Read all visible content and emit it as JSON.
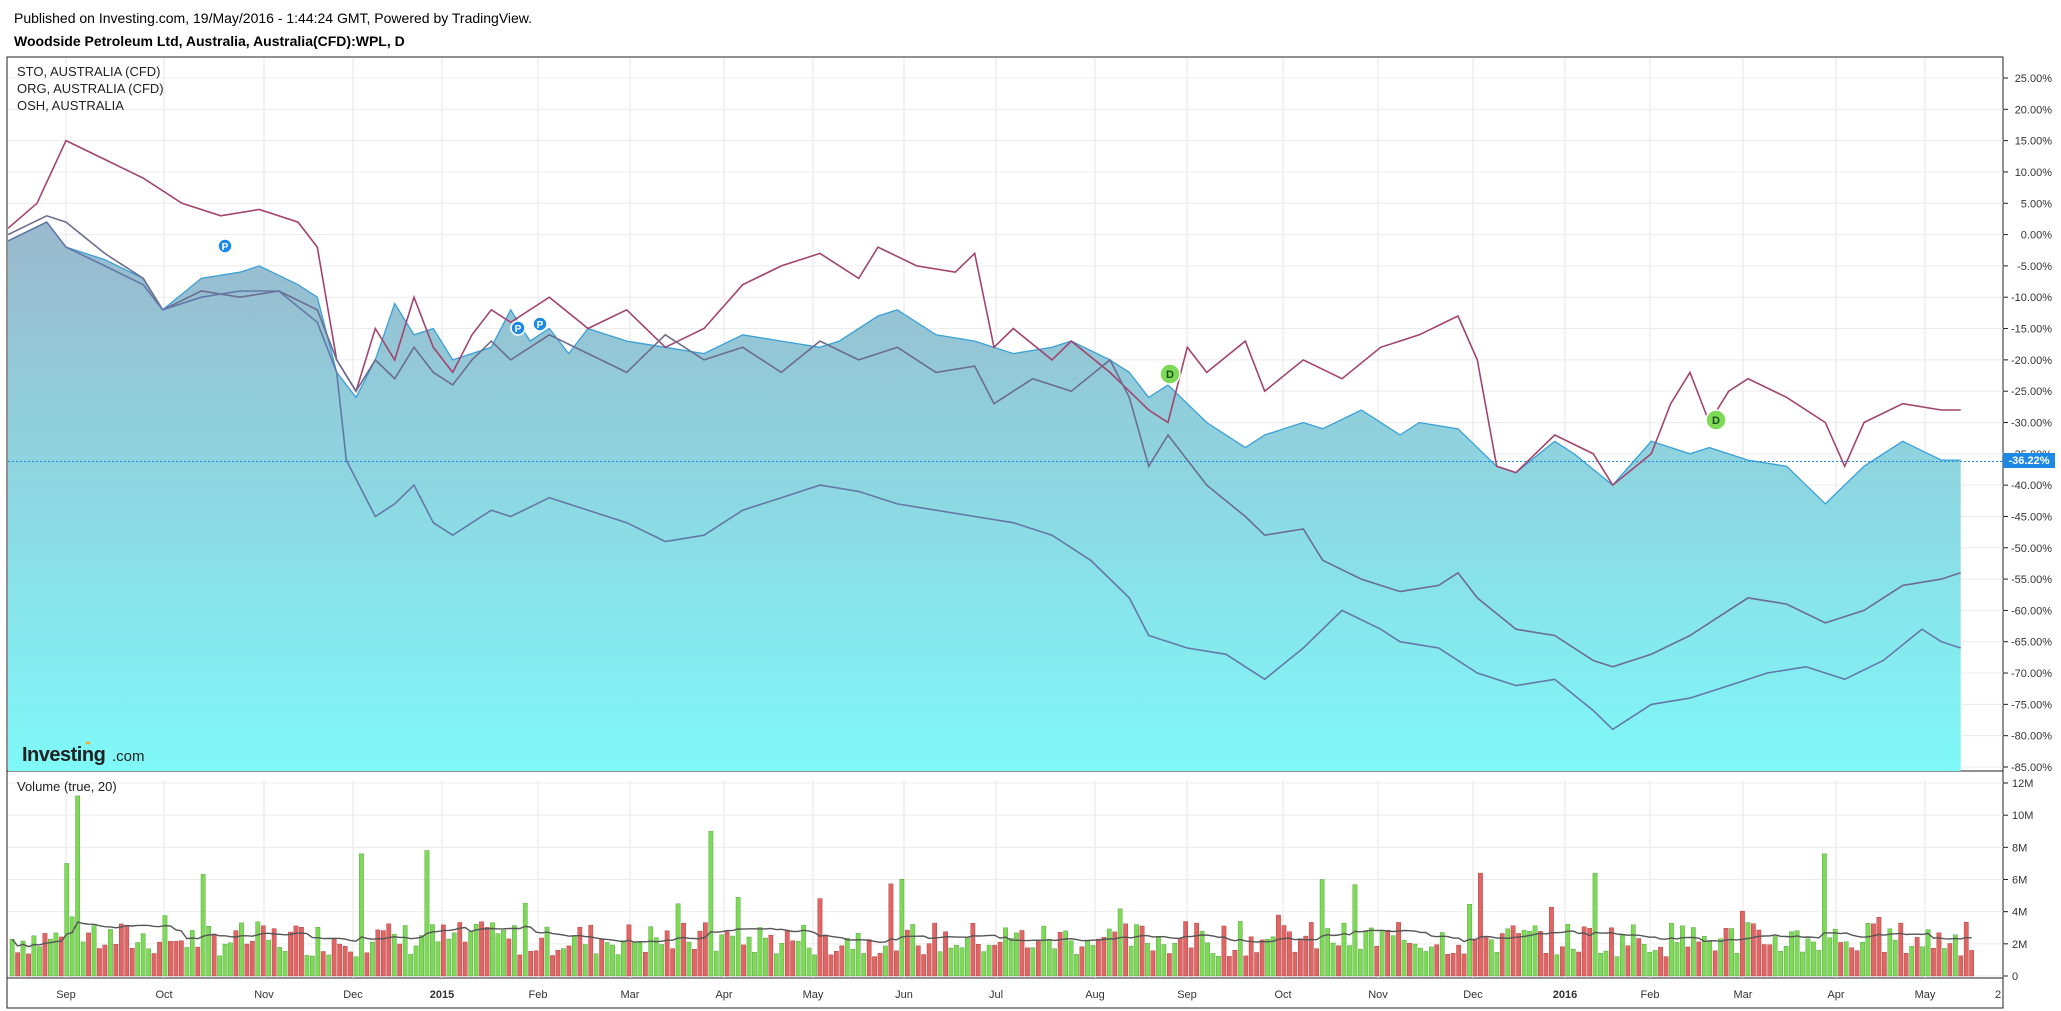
{
  "header": {
    "published": "Published on Investing.com, 19/May/2016 - 1:44:24 GMT, Powered by TradingView.",
    "symbol": "Woodside Petroleum Ltd, Australia, Australia(CFD):WPL, D"
  },
  "legend": {
    "items": [
      "STO, AUSTRALIA (CFD)",
      "ORG, AUSTRALIA (CFD)",
      "OSH, AUSTRALIA"
    ]
  },
  "volume_label": "Volume (true, 20)",
  "logo": {
    "brand": "Investing",
    "suffix": ".com"
  },
  "price_badge": "-36.22%",
  "markers": [
    {
      "label": "P",
      "x": "Oct",
      "color": "#1e88e5"
    },
    {
      "label": "P",
      "x": "Feb",
      "color": "#1e88e5"
    },
    {
      "label": "P",
      "x": "Feb",
      "color": "#1e88e5"
    },
    {
      "label": "D",
      "x": "Aug",
      "color": "#7ed957"
    },
    {
      "label": "D",
      "x": "Feb",
      "color": "#7ed957"
    }
  ],
  "colors": {
    "area_top": "#3aa0d8",
    "area_fill_top": "#9ab8cc",
    "area_fill_bottom": "#7ff8f8",
    "sto": "#a2446e",
    "org": "#6c6d8e",
    "osh": "#6478a8",
    "vol_up": "#7ed957",
    "vol_down": "#e06666",
    "vol_ma": "#555555",
    "badge": "#1e88e5"
  },
  "chart_data": [
    {
      "type": "area",
      "title": "Woodside Petroleum Ltd, Australia, Australia(CFD):WPL, D",
      "x_tick_labels": [
        "Sep",
        "Oct",
        "Nov",
        "Dec",
        "2015",
        "Feb",
        "Mar",
        "Apr",
        "May",
        "Jun",
        "Jul",
        "Aug",
        "Sep",
        "Oct",
        "Nov",
        "Dec",
        "2016",
        "Feb",
        "Mar",
        "Apr",
        "May"
      ],
      "y_tick_labels": [
        "25.00%",
        "20.00%",
        "15.00%",
        "10.00%",
        "5.00%",
        "0.00%",
        "-5.00%",
        "-10.00%",
        "-15.00%",
        "-20.00%",
        "-25.00%",
        "-30.00%",
        "-35.00%",
        "-40.00%",
        "-45.00%",
        "-50.00%",
        "-55.00%",
        "-60.00%",
        "-65.00%",
        "-70.00%",
        "-75.00%",
        "-80.00%",
        "-85.00%"
      ],
      "ylim": [
        -86,
        27
      ],
      "x_domain": [
        0,
        20.4
      ],
      "series": [
        {
          "name": "WPL",
          "values": [
            [
              0,
              -1
            ],
            [
              0.4,
              2
            ],
            [
              0.6,
              -2
            ],
            [
              1.0,
              -4
            ],
            [
              1.4,
              -7
            ],
            [
              1.6,
              -12
            ],
            [
              2.0,
              -7
            ],
            [
              2.4,
              -6
            ],
            [
              2.6,
              -5
            ],
            [
              3.0,
              -8
            ],
            [
              3.2,
              -10
            ],
            [
              3.4,
              -22
            ],
            [
              3.6,
              -26
            ],
            [
              3.8,
              -20
            ],
            [
              4.0,
              -11
            ],
            [
              4.2,
              -16
            ],
            [
              4.4,
              -15
            ],
            [
              4.6,
              -20
            ],
            [
              5.0,
              -18
            ],
            [
              5.2,
              -12
            ],
            [
              5.4,
              -17
            ],
            [
              5.6,
              -15
            ],
            [
              5.8,
              -19
            ],
            [
              6.0,
              -15
            ],
            [
              6.4,
              -17
            ],
            [
              6.8,
              -18
            ],
            [
              7.2,
              -19
            ],
            [
              7.6,
              -16
            ],
            [
              8.0,
              -17
            ],
            [
              8.4,
              -18
            ],
            [
              8.6,
              -17
            ],
            [
              9.0,
              -13
            ],
            [
              9.2,
              -12
            ],
            [
              9.6,
              -16
            ],
            [
              10.0,
              -17
            ],
            [
              10.4,
              -19
            ],
            [
              10.8,
              -18
            ],
            [
              11.0,
              -17
            ],
            [
              11.4,
              -20
            ],
            [
              11.6,
              -22
            ],
            [
              11.8,
              -26
            ],
            [
              12.0,
              -24
            ],
            [
              12.4,
              -30
            ],
            [
              12.8,
              -34
            ],
            [
              13.0,
              -32
            ],
            [
              13.4,
              -30
            ],
            [
              13.6,
              -31
            ],
            [
              14.0,
              -28
            ],
            [
              14.4,
              -32
            ],
            [
              14.6,
              -30
            ],
            [
              15.0,
              -31
            ],
            [
              15.4,
              -37
            ],
            [
              15.6,
              -38
            ],
            [
              16.0,
              -33
            ],
            [
              16.2,
              -35
            ],
            [
              16.6,
              -40
            ],
            [
              17.0,
              -33
            ],
            [
              17.4,
              -35
            ],
            [
              17.6,
              -34
            ],
            [
              18.0,
              -36
            ],
            [
              18.4,
              -37
            ],
            [
              18.8,
              -43
            ],
            [
              19.2,
              -37
            ],
            [
              19.6,
              -33
            ],
            [
              20.0,
              -36
            ],
            [
              20.2,
              -36
            ]
          ]
        },
        {
          "name": "STO",
          "values": [
            [
              0,
              1
            ],
            [
              0.3,
              5
            ],
            [
              0.6,
              15
            ],
            [
              1.0,
              12
            ],
            [
              1.4,
              9
            ],
            [
              1.8,
              5
            ],
            [
              2.2,
              3
            ],
            [
              2.6,
              4
            ],
            [
              3.0,
              2
            ],
            [
              3.2,
              -2
            ],
            [
              3.4,
              -20
            ],
            [
              3.6,
              -25
            ],
            [
              3.8,
              -15
            ],
            [
              4.0,
              -20
            ],
            [
              4.2,
              -10
            ],
            [
              4.4,
              -18
            ],
            [
              4.6,
              -22
            ],
            [
              4.8,
              -16
            ],
            [
              5.0,
              -12
            ],
            [
              5.2,
              -14
            ],
            [
              5.6,
              -10
            ],
            [
              6.0,
              -15
            ],
            [
              6.4,
              -12
            ],
            [
              6.8,
              -18
            ],
            [
              7.2,
              -15
            ],
            [
              7.6,
              -8
            ],
            [
              8.0,
              -5
            ],
            [
              8.4,
              -3
            ],
            [
              8.8,
              -7
            ],
            [
              9.0,
              -2
            ],
            [
              9.4,
              -5
            ],
            [
              9.8,
              -6
            ],
            [
              10.0,
              -3
            ],
            [
              10.2,
              -18
            ],
            [
              10.4,
              -15
            ],
            [
              10.8,
              -20
            ],
            [
              11.0,
              -17
            ],
            [
              11.4,
              -22
            ],
            [
              11.6,
              -25
            ],
            [
              11.8,
              -28
            ],
            [
              12.0,
              -30
            ],
            [
              12.2,
              -18
            ],
            [
              12.4,
              -22
            ],
            [
              12.8,
              -17
            ],
            [
              13.0,
              -25
            ],
            [
              13.4,
              -20
            ],
            [
              13.8,
              -23
            ],
            [
              14.2,
              -18
            ],
            [
              14.6,
              -16
            ],
            [
              15.0,
              -13
            ],
            [
              15.2,
              -20
            ],
            [
              15.4,
              -37
            ],
            [
              15.6,
              -38
            ],
            [
              16.0,
              -32
            ],
            [
              16.4,
              -35
            ],
            [
              16.6,
              -40
            ],
            [
              17.0,
              -35
            ],
            [
              17.2,
              -27
            ],
            [
              17.4,
              -22
            ],
            [
              17.6,
              -30
            ],
            [
              17.8,
              -25
            ],
            [
              18.0,
              -23
            ],
            [
              18.4,
              -26
            ],
            [
              18.8,
              -30
            ],
            [
              19.0,
              -37
            ],
            [
              19.2,
              -30
            ],
            [
              19.6,
              -27
            ],
            [
              20.0,
              -28
            ],
            [
              20.2,
              -28
            ]
          ]
        },
        {
          "name": "ORG",
          "values": [
            [
              0,
              0
            ],
            [
              0.4,
              3
            ],
            [
              0.6,
              2
            ],
            [
              1.0,
              -3
            ],
            [
              1.4,
              -7
            ],
            [
              1.6,
              -12
            ],
            [
              2.0,
              -9
            ],
            [
              2.4,
              -10
            ],
            [
              2.8,
              -9
            ],
            [
              3.2,
              -12
            ],
            [
              3.4,
              -20
            ],
            [
              3.6,
              -25
            ],
            [
              3.8,
              -20
            ],
            [
              4.0,
              -23
            ],
            [
              4.2,
              -18
            ],
            [
              4.4,
              -22
            ],
            [
              4.6,
              -24
            ],
            [
              4.8,
              -20
            ],
            [
              5.0,
              -17
            ],
            [
              5.2,
              -20
            ],
            [
              5.6,
              -16
            ],
            [
              6.0,
              -19
            ],
            [
              6.4,
              -22
            ],
            [
              6.8,
              -16
            ],
            [
              7.2,
              -20
            ],
            [
              7.6,
              -18
            ],
            [
              8.0,
              -22
            ],
            [
              8.4,
              -17
            ],
            [
              8.8,
              -20
            ],
            [
              9.2,
              -18
            ],
            [
              9.6,
              -22
            ],
            [
              10.0,
              -21
            ],
            [
              10.2,
              -27
            ],
            [
              10.6,
              -23
            ],
            [
              11.0,
              -25
            ],
            [
              11.4,
              -20
            ],
            [
              11.6,
              -26
            ],
            [
              11.8,
              -37
            ],
            [
              12.0,
              -32
            ],
            [
              12.4,
              -40
            ],
            [
              12.8,
              -45
            ],
            [
              13.0,
              -48
            ],
            [
              13.4,
              -47
            ],
            [
              13.6,
              -52
            ],
            [
              14.0,
              -55
            ],
            [
              14.4,
              -57
            ],
            [
              14.8,
              -56
            ],
            [
              15.0,
              -54
            ],
            [
              15.2,
              -58
            ],
            [
              15.6,
              -63
            ],
            [
              16.0,
              -64
            ],
            [
              16.4,
              -68
            ],
            [
              16.6,
              -69
            ],
            [
              17.0,
              -67
            ],
            [
              17.4,
              -64
            ],
            [
              17.6,
              -62
            ],
            [
              18.0,
              -58
            ],
            [
              18.4,
              -59
            ],
            [
              18.8,
              -62
            ],
            [
              19.2,
              -60
            ],
            [
              19.6,
              -56
            ],
            [
              20.0,
              -55
            ],
            [
              20.2,
              -54
            ]
          ]
        },
        {
          "name": "OSH",
          "values": [
            [
              0,
              -1
            ],
            [
              0.4,
              2
            ],
            [
              0.6,
              -2
            ],
            [
              1.0,
              -5
            ],
            [
              1.4,
              -8
            ],
            [
              1.6,
              -12
            ],
            [
              2.0,
              -10
            ],
            [
              2.4,
              -9
            ],
            [
              2.8,
              -9
            ],
            [
              3.2,
              -14
            ],
            [
              3.4,
              -22
            ],
            [
              3.5,
              -36
            ],
            [
              3.8,
              -45
            ],
            [
              4.0,
              -43
            ],
            [
              4.2,
              -40
            ],
            [
              4.4,
              -46
            ],
            [
              4.6,
              -48
            ],
            [
              4.8,
              -46
            ],
            [
              5.0,
              -44
            ],
            [
              5.2,
              -45
            ],
            [
              5.6,
              -42
            ],
            [
              6.0,
              -44
            ],
            [
              6.4,
              -46
            ],
            [
              6.8,
              -49
            ],
            [
              7.2,
              -48
            ],
            [
              7.6,
              -44
            ],
            [
              8.0,
              -42
            ],
            [
              8.4,
              -40
            ],
            [
              8.8,
              -41
            ],
            [
              9.2,
              -43
            ],
            [
              9.6,
              -44
            ],
            [
              10.0,
              -45
            ],
            [
              10.4,
              -46
            ],
            [
              10.8,
              -48
            ],
            [
              11.2,
              -52
            ],
            [
              11.6,
              -58
            ],
            [
              11.8,
              -64
            ],
            [
              12.2,
              -66
            ],
            [
              12.6,
              -67
            ],
            [
              13.0,
              -71
            ],
            [
              13.4,
              -66
            ],
            [
              13.8,
              -60
            ],
            [
              14.2,
              -63
            ],
            [
              14.4,
              -65
            ],
            [
              14.8,
              -66
            ],
            [
              15.2,
              -70
            ],
            [
              15.6,
              -72
            ],
            [
              16.0,
              -71
            ],
            [
              16.4,
              -76
            ],
            [
              16.6,
              -79
            ],
            [
              17.0,
              -75
            ],
            [
              17.4,
              -74
            ],
            [
              17.8,
              -72
            ],
            [
              18.2,
              -70
            ],
            [
              18.6,
              -69
            ],
            [
              19.0,
              -71
            ],
            [
              19.4,
              -68
            ],
            [
              19.8,
              -63
            ],
            [
              20.0,
              -65
            ],
            [
              20.2,
              -66
            ]
          ]
        }
      ],
      "current_value": -36.22
    },
    {
      "type": "bar",
      "title": "Volume (true, 20)",
      "y_tick_labels": [
        "12M",
        "10M",
        "8M",
        "6M",
        "4M",
        "2M",
        "0"
      ],
      "ylim": [
        0,
        12.5
      ],
      "unit": "M",
      "bar_count": 360,
      "series_ma_name": "MA 20"
    }
  ],
  "x_axis_extra": "2"
}
